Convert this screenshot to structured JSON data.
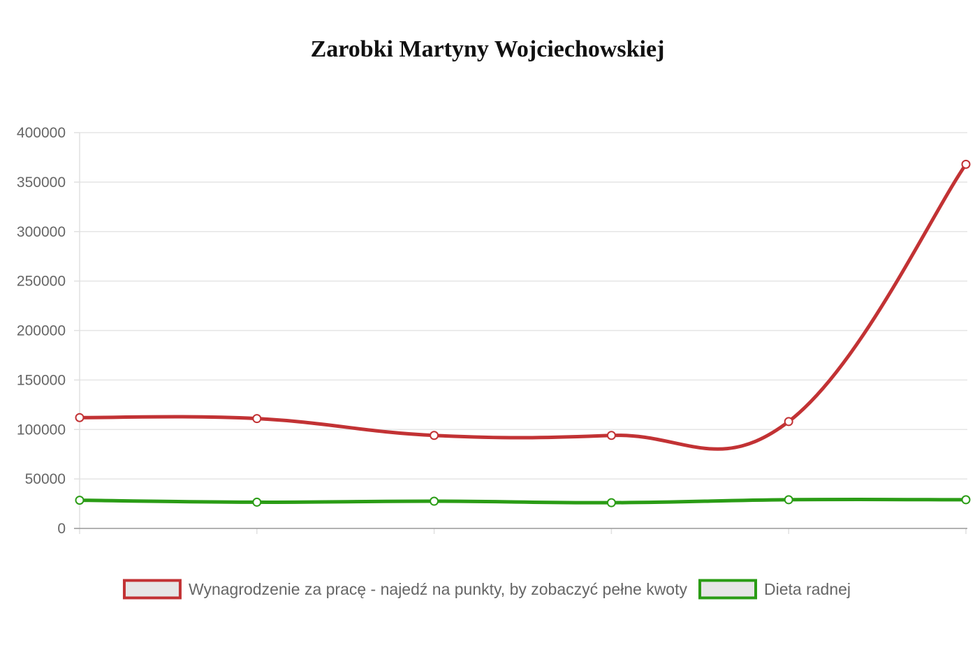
{
  "chart_data": {
    "type": "line",
    "title": "Zarobki Martyny Wojciechowskiej",
    "xlabel": "",
    "ylabel": "",
    "ylim": [
      0,
      400000
    ],
    "yticks": [
      0,
      50000,
      100000,
      150000,
      200000,
      250000,
      300000,
      350000,
      400000
    ],
    "grid": true,
    "legend": "bottom",
    "point_count": 6,
    "series": [
      {
        "name": "Wynagrodzenie za pracę - najedź na punkty, by zobaczyć pełne kwoty",
        "color": "#c23234",
        "values": [
          112000,
          111000,
          94000,
          94000,
          108000,
          368000
        ]
      },
      {
        "name": "Dieta radnej",
        "color": "#2a9c15",
        "values": [
          28500,
          26500,
          27500,
          26000,
          29000,
          29000
        ]
      }
    ]
  }
}
